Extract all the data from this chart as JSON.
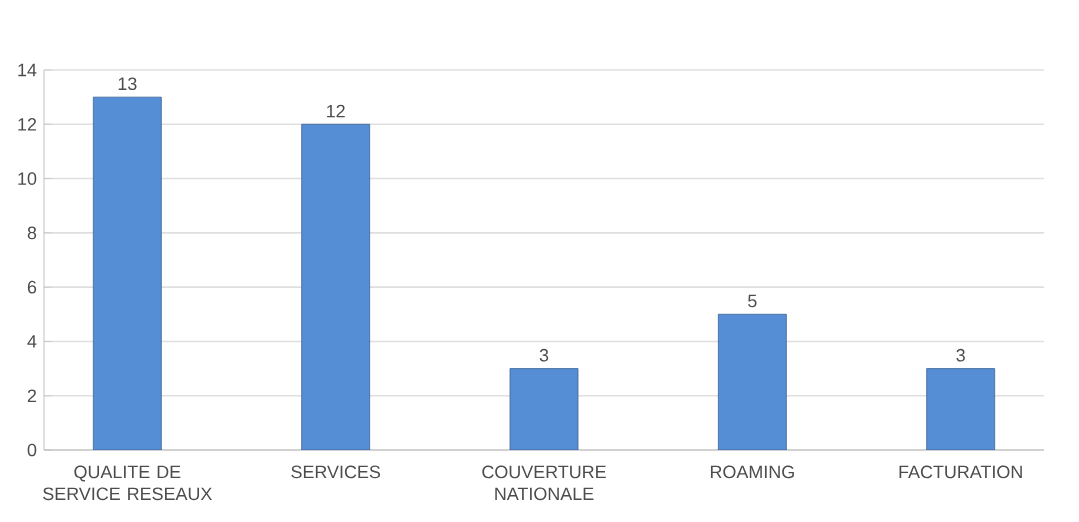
{
  "chart_data": {
    "type": "bar",
    "categories": [
      "QUALITE DE SERVICE RESEAUX",
      "SERVICES",
      "COUVERTURE NATIONALE",
      "ROAMING",
      "FACTURATION"
    ],
    "values": [
      13,
      12,
      3,
      5,
      3
    ],
    "color": "#558ed5",
    "ylim": [
      0,
      14
    ],
    "yticks": [
      0,
      2,
      4,
      6,
      8,
      10,
      12,
      14
    ],
    "grid": "y",
    "data_labels": true
  }
}
